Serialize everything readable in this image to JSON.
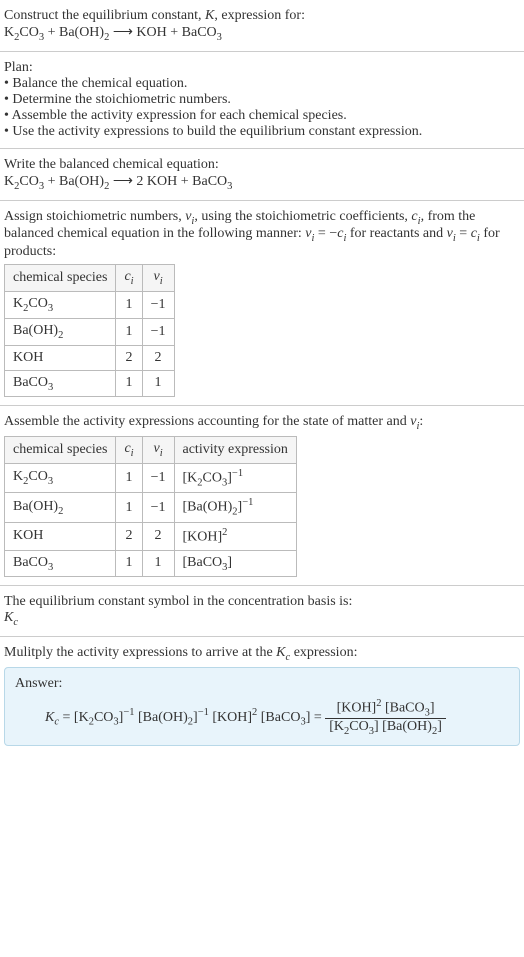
{
  "intro": {
    "line1": "Construct the equilibrium constant, ",
    "K": "K",
    "line1b": ", expression for:",
    "reaction_lhs_a": "K",
    "reaction_lhs_a_sub1": "2",
    "reaction_lhs_a_mid": "CO",
    "reaction_lhs_a_sub2": "3",
    "plus1": " + ",
    "reaction_lhs_b": "Ba(OH)",
    "reaction_lhs_b_sub": "2",
    "arrow": " ⟶ ",
    "reaction_rhs_a": "KOH",
    "plus2": " + ",
    "reaction_rhs_b": "BaCO",
    "reaction_rhs_b_sub": "3"
  },
  "plan": {
    "title": "Plan:",
    "b1": "• Balance the chemical equation.",
    "b2": "• Determine the stoichiometric numbers.",
    "b3": "• Assemble the activity expression for each chemical species.",
    "b4": "• Use the activity expressions to build the equilibrium constant expression."
  },
  "balanced": {
    "title": "Write the balanced chemical equation:",
    "lhs_a": "K",
    "lhs_a_sub1": "2",
    "lhs_a_mid": "CO",
    "lhs_a_sub2": "3",
    "plus1": " + ",
    "lhs_b": "Ba(OH)",
    "lhs_b_sub": "2",
    "arrow": " ⟶ ",
    "rhs_coef": "2 ",
    "rhs_a": "KOH",
    "plus2": " + ",
    "rhs_b": "BaCO",
    "rhs_b_sub": "3"
  },
  "assign": {
    "text_a": "Assign stoichiometric numbers, ",
    "nu": "ν",
    "nu_sub": "i",
    "text_b": ", using the stoichiometric coefficients, ",
    "c": "c",
    "c_sub": "i",
    "text_c": ", from the balanced chemical equation in the following manner: ",
    "eq1_lhs": "ν",
    "eq1_lhs_sub": "i",
    "eq1_mid": " = −",
    "eq1_rhs": "c",
    "eq1_rhs_sub": "i",
    "text_d": " for reactants and ",
    "eq2_lhs": "ν",
    "eq2_lhs_sub": "i",
    "eq2_mid": " = ",
    "eq2_rhs": "c",
    "eq2_rhs_sub": "i",
    "text_e": " for products:",
    "table": {
      "headers": [
        "chemical species",
        "cᵢ",
        "νᵢ"
      ],
      "h2_base": "c",
      "h2_sub": "i",
      "h3_base": "ν",
      "h3_sub": "i",
      "rows": [
        {
          "sp": "K",
          "sp_sub1": "2",
          "sp_mid": "CO",
          "sp_sub2": "3",
          "c": "1",
          "v": "−1"
        },
        {
          "sp": "Ba(OH)",
          "sp_sub1": "2",
          "sp_mid": "",
          "sp_sub2": "",
          "c": "1",
          "v": "−1"
        },
        {
          "sp": "KOH",
          "sp_sub1": "",
          "sp_mid": "",
          "sp_sub2": "",
          "c": "2",
          "v": "2"
        },
        {
          "sp": "BaCO",
          "sp_sub1": "3",
          "sp_mid": "",
          "sp_sub2": "",
          "c": "1",
          "v": "1"
        }
      ]
    }
  },
  "activity": {
    "text_a": "Assemble the activity expressions accounting for the state of matter and ",
    "nu": "ν",
    "nu_sub": "i",
    "text_b": ":",
    "table": {
      "h1": "chemical species",
      "h2_base": "c",
      "h2_sub": "i",
      "h3_base": "ν",
      "h3_sub": "i",
      "h4": "activity expression",
      "rows": [
        {
          "sp": "K",
          "s1": "2",
          "mid": "CO",
          "s2": "3",
          "c": "1",
          "v": "−1",
          "ae_open": "[K",
          "ae_s1": "2",
          "ae_mid": "CO",
          "ae_s2": "3",
          "ae_close": "]",
          "ae_sup": "−1"
        },
        {
          "sp": "Ba(OH)",
          "s1": "2",
          "mid": "",
          "s2": "",
          "c": "1",
          "v": "−1",
          "ae_open": "[Ba(OH)",
          "ae_s1": "2",
          "ae_mid": "",
          "ae_s2": "",
          "ae_close": "]",
          "ae_sup": "−1"
        },
        {
          "sp": "KOH",
          "s1": "",
          "mid": "",
          "s2": "",
          "c": "2",
          "v": "2",
          "ae_open": "[KOH",
          "ae_s1": "",
          "ae_mid": "",
          "ae_s2": "",
          "ae_close": "]",
          "ae_sup": "2"
        },
        {
          "sp": "BaCO",
          "s1": "3",
          "mid": "",
          "s2": "",
          "c": "1",
          "v": "1",
          "ae_open": "[BaCO",
          "ae_s1": "3",
          "ae_mid": "",
          "ae_s2": "",
          "ae_close": "]",
          "ae_sup": ""
        }
      ]
    }
  },
  "symbol": {
    "text": "The equilibrium constant symbol in the concentration basis is:",
    "Kc_base": "K",
    "Kc_sub": "c"
  },
  "multiply": {
    "text_a": "Mulitply the activity expressions to arrive at the ",
    "Kc_base": "K",
    "Kc_sub": "c",
    "text_b": " expression:"
  },
  "answer": {
    "label": "Answer:",
    "Kc_base": "K",
    "Kc_sub": "c",
    "eq": " = ",
    "t1_open": "[K",
    "t1_s1": "2",
    "t1_mid": "CO",
    "t1_s2": "3",
    "t1_close": "]",
    "t1_sup": "−1",
    "sp1": " ",
    "t2_open": "[Ba(OH)",
    "t2_s1": "2",
    "t2_close": "]",
    "t2_sup": "−1",
    "sp2": " ",
    "t3_open": "[KOH]",
    "t3_sup": "2",
    "sp3": " ",
    "t4_open": "[BaCO",
    "t4_s1": "3",
    "t4_close": "]",
    "eq2": " = ",
    "num_a": "[KOH]",
    "num_a_sup": "2",
    "num_sp": " ",
    "num_b": "[BaCO",
    "num_b_s": "3",
    "num_b_close": "]",
    "den_a": "[K",
    "den_a_s1": "2",
    "den_a_mid": "CO",
    "den_a_s2": "3",
    "den_a_close": "]",
    "den_sp": " ",
    "den_b": "[Ba(OH)",
    "den_b_s": "2",
    "den_b_close": "]"
  },
  "style": {
    "background": "#ffffff",
    "text_color": "#333333",
    "border_color": "#cccccc",
    "table_border": "#bbbbbb",
    "answer_bg": "#e8f4fb",
    "answer_border": "#b8d8e8",
    "fontsize_body": 14
  }
}
